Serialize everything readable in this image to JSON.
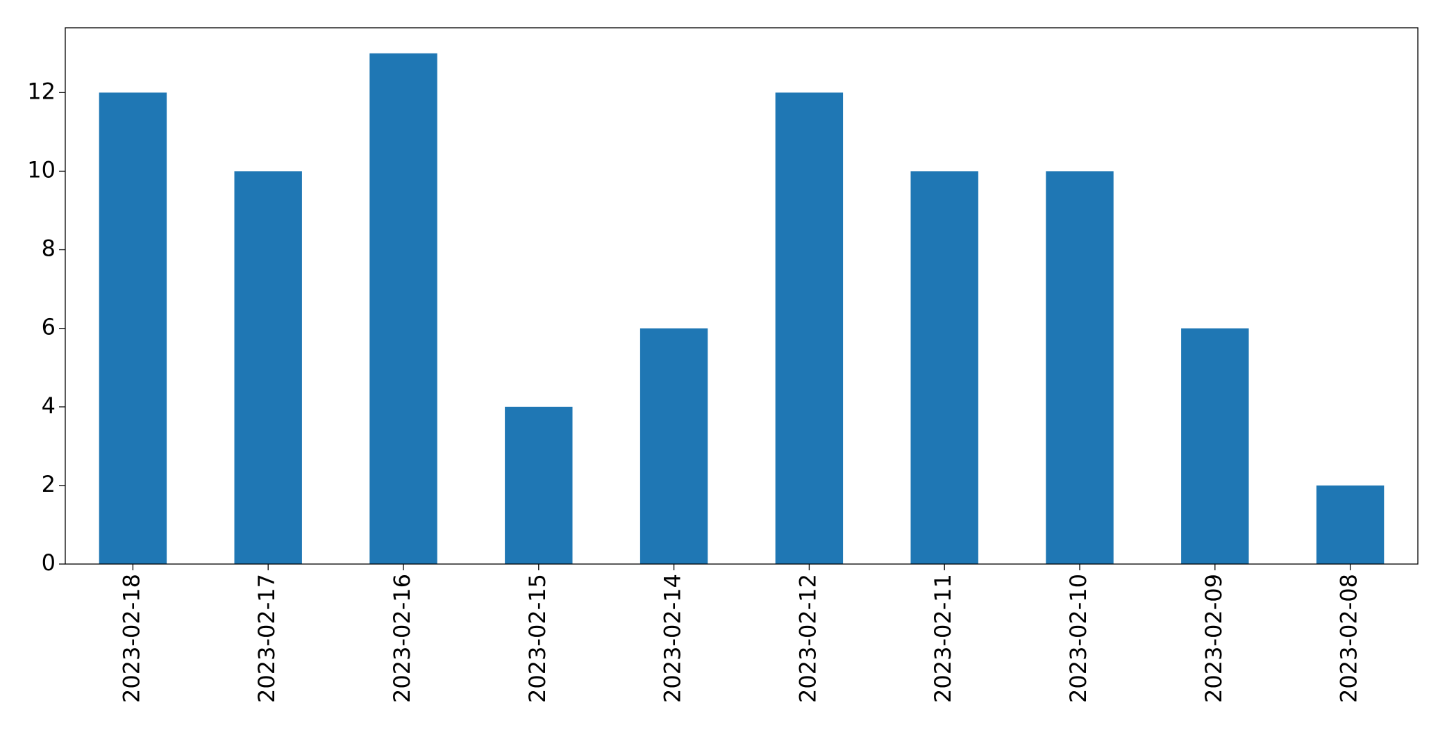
{
  "chart_data": {
    "type": "bar",
    "categories": [
      "2023-02-18",
      "2023-02-17",
      "2023-02-16",
      "2023-02-15",
      "2023-02-14",
      "2023-02-12",
      "2023-02-11",
      "2023-02-10",
      "2023-02-09",
      "2023-02-08"
    ],
    "values": [
      12,
      10,
      13,
      4,
      6,
      12,
      10,
      10,
      6,
      2
    ],
    "color": "#1f77b4",
    "ylim": [
      0,
      13.65
    ],
    "yticks": [
      0,
      2,
      4,
      6,
      8,
      10,
      12
    ],
    "grid": false
  }
}
